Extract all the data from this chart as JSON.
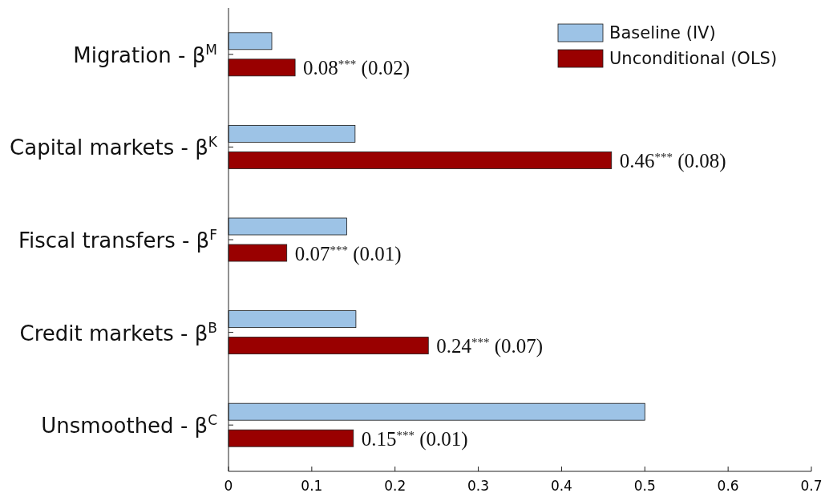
{
  "chart_data": {
    "type": "bar",
    "orientation": "horizontal",
    "categories": [
      "Migration - β$^{M}$",
      "Capital markets - β$^{K}$",
      "Fiscal transfers - β$^{F}$",
      "Credit markets - β$^{B}$",
      "Unsmoothed - β$^{C}$"
    ],
    "series": [
      {
        "name": "Baseline (IV)",
        "color": "#9dc3e6",
        "values": [
          0.052,
          0.152,
          0.142,
          0.153,
          0.5
        ]
      },
      {
        "name": "Unconditional (OLS)",
        "color": "#990000",
        "values": [
          0.08,
          0.46,
          0.07,
          0.24,
          0.15
        ],
        "value_labels": [
          "0.08$^{***}$ (0.02)",
          "0.46$^{***}$ (0.08)",
          "0.07$^{***}$ (0.01)",
          "0.24$^{***}$ (0.07)",
          "0.15$^{***}$ (0.01)"
        ]
      }
    ],
    "xlim": [
      0,
      0.7
    ],
    "xticks": [
      0,
      0.1,
      0.2,
      0.3,
      0.4,
      0.5,
      0.6,
      0.7
    ],
    "grid": false,
    "legend": "top right"
  }
}
